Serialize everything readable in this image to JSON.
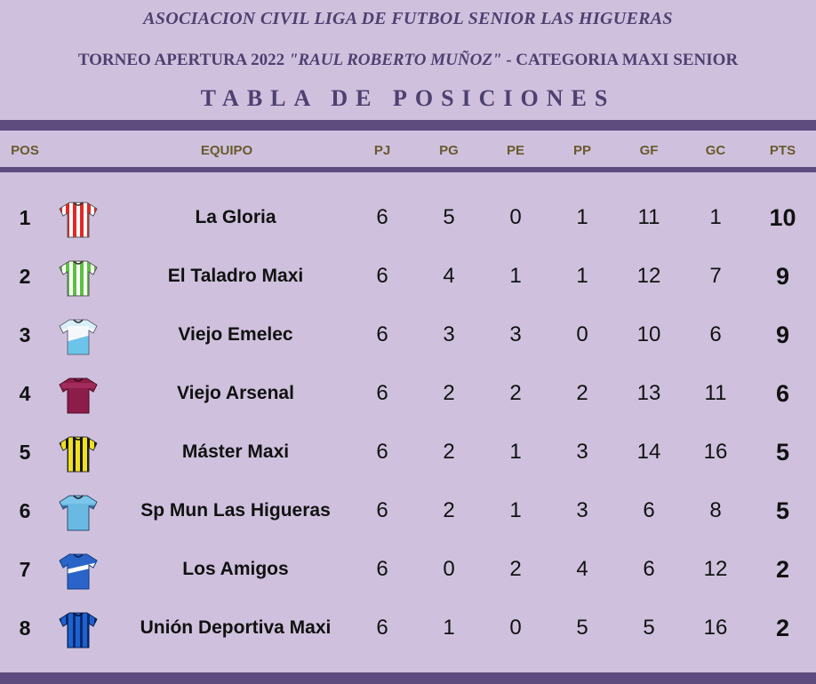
{
  "header": {
    "league": "ASOCIACION CIVIL LIGA DE FUTBOL SENIOR LAS HIGUERAS",
    "tournament_prefix": "TORNEO APERTURA 2022 ",
    "tournament_name": "\"RAUL ROBERTO MUÑOZ\"",
    "tournament_suffix": " - CATEGORIA MAXI SENIOR",
    "title": "TABLA DE POSICIONES"
  },
  "columns": {
    "pos": "POS",
    "team": "EQUIPO",
    "pj": "PJ",
    "pg": "PG",
    "pe": "PE",
    "pp": "PP",
    "gf": "GF",
    "gc": "GC",
    "pts": "PTS"
  },
  "rows": [
    {
      "pos": "1",
      "team": "La Gloria",
      "pj": "6",
      "pg": "5",
      "pe": "0",
      "pp": "1",
      "gf": "11",
      "gc": "1",
      "pts": "10",
      "shirt": "shirt-red-white-stripes-icon"
    },
    {
      "pos": "2",
      "team": "El Taladro Maxi",
      "pj": "6",
      "pg": "4",
      "pe": "1",
      "pp": "1",
      "gf": "12",
      "gc": "7",
      "pts": "9",
      "shirt": "shirt-green-white-stripes-icon"
    },
    {
      "pos": "3",
      "team": "Viejo Emelec",
      "pj": "6",
      "pg": "3",
      "pe": "3",
      "pp": "0",
      "gf": "10",
      "gc": "6",
      "pts": "9",
      "shirt": "shirt-white-skyblue-icon"
    },
    {
      "pos": "4",
      "team": "Viejo Arsenal",
      "pj": "6",
      "pg": "2",
      "pe": "2",
      "pp": "2",
      "gf": "13",
      "gc": "11",
      "pts": "6",
      "shirt": "shirt-maroon-icon"
    },
    {
      "pos": "5",
      "team": "Máster Maxi",
      "pj": "6",
      "pg": "2",
      "pe": "1",
      "pp": "3",
      "gf": "14",
      "gc": "16",
      "pts": "5",
      "shirt": "shirt-yellow-black-stripes-icon"
    },
    {
      "pos": "6",
      "team": "Sp Mun Las Higueras",
      "pj": "6",
      "pg": "2",
      "pe": "1",
      "pp": "3",
      "gf": "6",
      "gc": "8",
      "pts": "5",
      "shirt": "shirt-skyblue-icon"
    },
    {
      "pos": "7",
      "team": "Los Amigos",
      "pj": "6",
      "pg": "0",
      "pe": "2",
      "pp": "4",
      "gf": "6",
      "gc": "12",
      "pts": "2",
      "shirt": "shirt-blue-white-sash-icon"
    },
    {
      "pos": "8",
      "team": "Unión Deportiva Maxi",
      "pj": "6",
      "pg": "1",
      "pe": "0",
      "pp": "5",
      "gf": "5",
      "gc": "16",
      "pts": "2",
      "shirt": "shirt-blue-navy-stripes-icon"
    }
  ],
  "colors": {
    "background": "#cfc1dd",
    "band": "#5e4c7e",
    "title_text": "#4e4070",
    "header_text": "#6a5a2e"
  }
}
